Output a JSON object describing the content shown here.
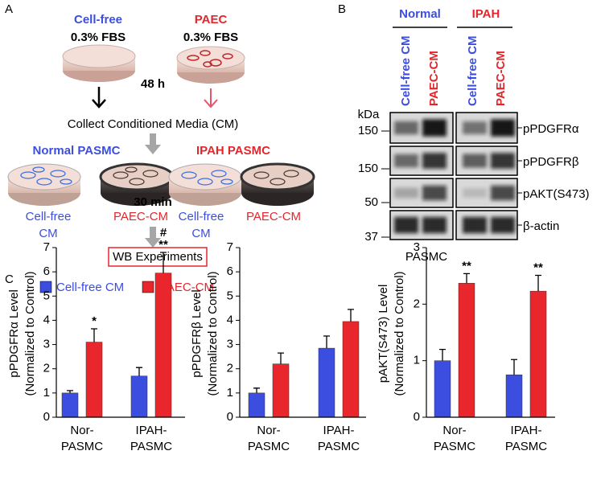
{
  "panel_a": {
    "label": "A",
    "left_top": [
      "Cell-free",
      "0.3% FBS"
    ],
    "right_top": [
      "PAEC",
      "0.3% FBS"
    ],
    "incubation": "48 h",
    "collect": "Collect Conditioned Media (CM)",
    "normal": "Normal PASMC",
    "ipah": "IPAH PASMC",
    "treatment": "30 min",
    "dish_labels": [
      [
        "Cell-free",
        "CM"
      ],
      [
        "PAEC-CM"
      ],
      [
        "Cell-free",
        "CM"
      ],
      [
        "PAEC-CM"
      ]
    ],
    "result": "WB Experiments"
  },
  "panel_b": {
    "label": "B",
    "groups": [
      "Normal",
      "IPAH"
    ],
    "lanes": [
      "Cell-free CM",
      "PAEC-CM",
      "Cell-free CM",
      "PAEC-CM"
    ],
    "unit": "kDa",
    "markers": [
      "150",
      "150",
      "50",
      "37"
    ],
    "proteins": [
      "pPDGFRα",
      "pPDGFRβ",
      "pAKT(S473)",
      "β-actin"
    ],
    "cells": "PASMC"
  },
  "panel_c": {
    "label": "C"
  },
  "chart_data": [
    {
      "type": "bar",
      "ylabel": [
        "pPDGFRα Level",
        "(Normalized to Control)"
      ],
      "categories": [
        [
          "Nor-",
          "PASMC"
        ],
        [
          "IPAH-",
          "PASMC"
        ]
      ],
      "category_colors": [
        "#3b4ee0",
        "#e3262c"
      ],
      "series": [
        {
          "name": "Cell-free CM",
          "color": "#3b4ee0",
          "values": [
            1.0,
            1.7
          ],
          "errors": [
            0.1,
            0.35
          ]
        },
        {
          "name": "PAEC-CM",
          "color": "#e8262b",
          "values": [
            3.1,
            5.95
          ],
          "errors": [
            0.55,
            0.85
          ]
        }
      ],
      "ylim": [
        0,
        7
      ],
      "yticks": [
        0,
        1,
        2,
        3,
        4,
        5,
        6,
        7
      ],
      "annotations": [
        "*",
        "**",
        "#"
      ]
    },
    {
      "type": "bar",
      "ylabel": [
        "pPDGFRβ Level",
        "(Normalized to Control)"
      ],
      "categories": [
        [
          "Nor-",
          "PASMC"
        ],
        [
          "IPAH-",
          "PASMC"
        ]
      ],
      "category_colors": [
        "#3b4ee0",
        "#e3262c"
      ],
      "series": [
        {
          "name": "Cell-free CM",
          "color": "#3b4ee0",
          "values": [
            1.0,
            2.85
          ],
          "errors": [
            0.2,
            0.5
          ]
        },
        {
          "name": "PAEC-CM",
          "color": "#e8262b",
          "values": [
            2.2,
            3.95
          ],
          "errors": [
            0.45,
            0.5
          ]
        }
      ],
      "ylim": [
        0,
        7
      ],
      "yticks": [
        0,
        1,
        2,
        3,
        4,
        5,
        6,
        7
      ]
    },
    {
      "type": "bar",
      "ylabel": [
        "pAKT(S473) Level",
        "(Normalized to Control)"
      ],
      "categories": [
        [
          "Nor-",
          "PASMC"
        ],
        [
          "IPAH-",
          "PASMC"
        ]
      ],
      "category_colors": [
        "#3b4ee0",
        "#e3262c"
      ],
      "series": [
        {
          "name": "Cell-free CM",
          "color": "#3b4ee0",
          "values": [
            1.0,
            0.75
          ],
          "errors": [
            0.2,
            0.27
          ]
        },
        {
          "name": "PAEC-CM",
          "color": "#e8262b",
          "values": [
            2.37,
            2.23
          ],
          "errors": [
            0.17,
            0.28
          ]
        }
      ],
      "ylim": [
        0,
        3
      ],
      "yticks": [
        0,
        1,
        2,
        3
      ],
      "annotations": [
        "**",
        "**"
      ]
    }
  ]
}
